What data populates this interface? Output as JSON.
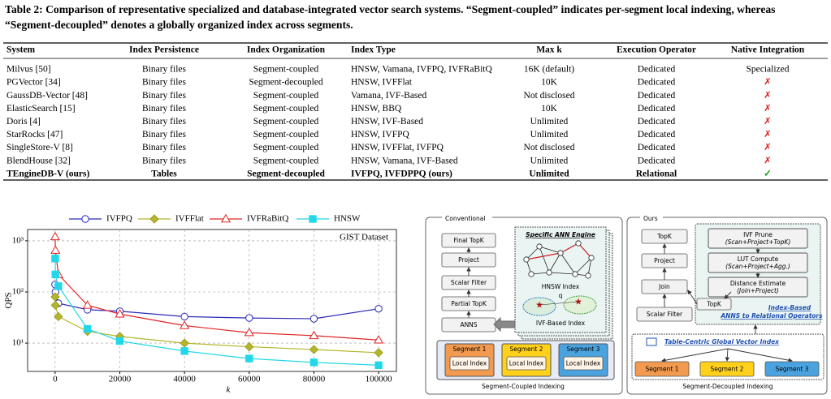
{
  "caption": "Table 2: Comparison of representative specialized and database-integrated vector search systems. “Segment-coupled” indicates per-segment local indexing, whereas “Segment-decoupled” denotes a globally organized index across segments.",
  "table": {
    "headers": [
      "System",
      "Index Persistence",
      "Index Organization",
      "Index Type",
      "Max k",
      "Execution Operator",
      "Native Integration"
    ],
    "rows": [
      [
        "Milvus [50]",
        "Binary files",
        "Segment-coupled",
        "HNSW, Vamana, IVFPQ, IVFRaBitQ",
        "16K (default)",
        "Dedicated",
        "Specialized"
      ],
      [
        "PGVector [34]",
        "Binary files",
        "Segment-decoupled",
        "HNSW, IVFFlat",
        "10K",
        "Dedicated",
        "✗"
      ],
      [
        "GaussDB-Vector [48]",
        "Binary files",
        "Segment-coupled",
        "Vamana, IVF-Based",
        "Not disclosed",
        "Dedicated",
        "✗"
      ],
      [
        "ElasticSearch [15]",
        "Binary files",
        "Segment-coupled",
        "HNSW, BBQ",
        "10K",
        "Dedicated",
        "✗"
      ],
      [
        "Doris [4]",
        "Binary files",
        "Segment-coupled",
        "HNSW, IVF-Based",
        "Unlimited",
        "Dedicated",
        "✗"
      ],
      [
        "StarRocks [47]",
        "Binary files",
        "Segment-coupled",
        "HNSW, IVFPQ",
        "Unlimited",
        "Dedicated",
        "✗"
      ],
      [
        "SingleStore-V [8]",
        "Binary files",
        "Segment-coupled",
        "HNSW, IVFFlat, IVFPQ",
        "Not disclosed",
        "Dedicated",
        "✗"
      ],
      [
        "BlendHouse [32]",
        "Binary files",
        "Segment-coupled",
        "HNSW, Vamana, IVF-Based",
        "Unlimited",
        "Dedicated",
        "✗"
      ],
      [
        "TEngineDB-V (ours)",
        "Tables",
        "Segment-decoupled",
        "IVFPQ, IVFDPPQ (ours)",
        "Unlimited",
        "Relational",
        "✓"
      ]
    ],
    "native_colors": [
      "#000000",
      "#e02020",
      "#e02020",
      "#e02020",
      "#e02020",
      "#e02020",
      "#e02020",
      "#e02020",
      "#1a9a1a"
    ]
  },
  "chart_data": {
    "type": "line",
    "annotation": "GIST Dataset",
    "xlabel": "k",
    "ylabel": "QPS",
    "x": [
      10,
      100,
      1000,
      10000,
      20000,
      40000,
      60000,
      80000,
      100000
    ],
    "series": [
      {
        "name": "IVFPQ",
        "color": "#2a2ab8",
        "marker": "circle",
        "values": [
          140,
          100,
          60,
          45,
          42,
          33,
          31,
          30,
          47
        ]
      },
      {
        "name": "IVFFlat",
        "color": "#b5b52a",
        "marker": "diamond",
        "values": [
          80,
          55,
          33,
          17,
          13.5,
          10,
          8.5,
          7.5,
          6.5
        ]
      },
      {
        "name": "IVFRaBitQ",
        "color": "#e02424",
        "marker": "triangle",
        "values": [
          1200,
          650,
          220,
          55,
          37,
          22,
          16,
          14,
          11.5
        ]
      },
      {
        "name": "HNSW",
        "color": "#22d8e8",
        "marker": "square",
        "values": [
          450,
          220,
          130,
          19,
          11,
          7,
          5,
          4.2,
          3.7
        ]
      }
    ],
    "xlim": [
      -8500,
      105500
    ],
    "xticks": [
      0,
      20000,
      40000,
      60000,
      80000,
      100000
    ],
    "ylim": [
      2.8,
      1660
    ],
    "yticks": [
      {
        "value": 10,
        "label": "10¹"
      },
      {
        "value": 100,
        "label": "10²"
      },
      {
        "value": 1000,
        "label": "10³"
      }
    ],
    "yscale": "log",
    "grid": true
  },
  "diagram": {
    "conventional": {
      "title": "Conventional",
      "pipeline": [
        "Final TopK",
        "Project",
        "Scalar Filter",
        "Partial TopK",
        "ANNS"
      ],
      "engine": "Specific ANN Engine",
      "hnsw": "HNSW Index",
      "query": "q",
      "ivf": "IVF-Based Index",
      "segments": [
        "Segment 1",
        "Segment 2",
        "Segment 3"
      ],
      "local_index": [
        "Local Index",
        "Local Index",
        "Local Index"
      ],
      "footer": "Segment-Coupled Indexing"
    },
    "ours": {
      "title": "Ours",
      "pipeline": [
        "TopK",
        "Project",
        "Join",
        "Scalar Filter"
      ],
      "operators": [
        {
          "name": "IVF Prune",
          "detail": "(Scan+Project+TopK)"
        },
        {
          "name": "LUT Compute",
          "detail": "(Scan+Project+Agg.)"
        },
        {
          "name": "Distance Estimate",
          "detail": "(Join+Project)"
        }
      ],
      "inner_topk": "TopK",
      "note": [
        "Index-Based",
        "ANNS  to Relational Operators"
      ],
      "global_index": "Table-Centric Global Vector Index",
      "segments": [
        "Segment 1",
        "Segment 2",
        "Segment 3"
      ],
      "footer": "Segment-Decoupled Indexing"
    }
  }
}
